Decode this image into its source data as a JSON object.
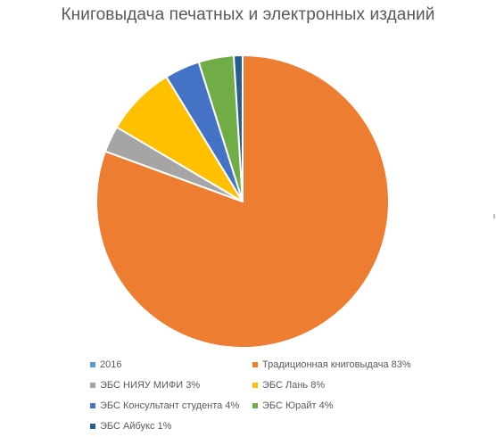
{
  "chart_data": {
    "type": "pie",
    "title": "Книговыдача печатных и электронных изданий",
    "slices": [
      {
        "label": "Традиционная книговыдача 83%",
        "value": 83,
        "color": "#ED7D31"
      },
      {
        "label": "ЭБС НИЯУ МИФИ 3%",
        "value": 3,
        "color": "#A5A5A5"
      },
      {
        "label": "ЭБС Лань 8%",
        "value": 8,
        "color": "#FFC000"
      },
      {
        "label": "ЭБС Консультант студента 4%",
        "value": 4,
        "color": "#4472C4"
      },
      {
        "label": "ЭБС Юрайт 4%",
        "value": 4,
        "color": "#70AD47"
      },
      {
        "label": "ЭБС Айбукс 1%",
        "value": 1,
        "color": "#255E91"
      }
    ],
    "legend": [
      {
        "label": "2016",
        "color": "#5B9BD5"
      },
      {
        "label": "Традиционная книговыдача 83%",
        "color": "#ED7D31"
      },
      {
        "label": "ЭБС НИЯУ МИФИ 3%",
        "color": "#A5A5A5"
      },
      {
        "label": "ЭБС Лань 8%",
        "color": "#FFC000"
      },
      {
        "label": "ЭБС Консультант студента 4%",
        "color": "#4472C4"
      },
      {
        "label": "ЭБС Юрайт 4%",
        "color": "#70AD47"
      },
      {
        "label": "ЭБС Айбукс 1%",
        "color": "#255E91"
      }
    ],
    "legend_position": "bottom"
  }
}
